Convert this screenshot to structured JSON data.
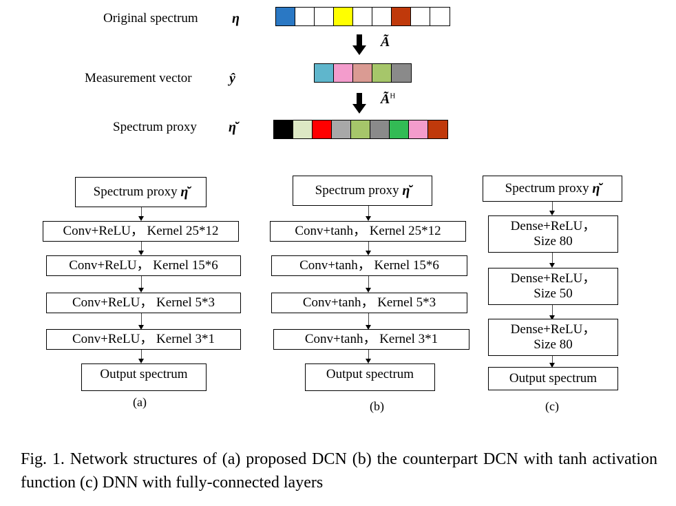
{
  "top": {
    "original_label": "Original spectrum",
    "original_symbol": "η",
    "original_colors": [
      "#2a78c4",
      "#ffffff",
      "#ffffff",
      "#ffff00",
      "#ffffff",
      "#ffffff",
      "#c0390b",
      "#ffffff",
      "#ffffff"
    ],
    "arrow1_label": "Ã",
    "measurement_label": "Measurement  vector",
    "measurement_symbol": "ŷ",
    "measurement_colors": [
      "#5fb6cc",
      "#f39ccc",
      "#da9b93",
      "#a6c66a",
      "#8a8a8a"
    ],
    "arrow2_label": "Ã",
    "arrow2_sup": "H",
    "proxy_label": "Spectrum  proxy",
    "proxy_symbol": "η̆",
    "proxy_colors": [
      "#000000",
      "#dde8c4",
      "#ff0000",
      "#a8a8a8",
      "#a6c66a",
      "#8a8a8a",
      "#33bb55",
      "#f39ccc",
      "#c0390b"
    ]
  },
  "networks": [
    {
      "id": "a",
      "input": "Spectrum proxy",
      "input_symbol": "η̆",
      "layers": [
        "Conv+ReLU， Kernel 25*12",
        "Conv+ReLU， Kernel 15*6",
        "Conv+ReLU， Kernel 5*3",
        "Conv+ReLU， Kernel 3*1"
      ],
      "output": "Output spectrum",
      "caption": "(a)"
    },
    {
      "id": "b",
      "input": "Spectrum proxy",
      "input_symbol": "η̆",
      "layers": [
        "Conv+tanh， Kernel 25*12",
        "Conv+tanh， Kernel 15*6",
        "Conv+tanh， Kernel 5*3",
        "Conv+tanh， Kernel 3*1"
      ],
      "output": "Output spectrum",
      "caption": "(b)"
    },
    {
      "id": "c",
      "input": "Spectrum proxy",
      "input_symbol": "η̆",
      "layers": [
        {
          "line1": "Dense+ReLU，",
          "line2": "Size  80"
        },
        {
          "line1": "Dense+ReLU，",
          "line2": "Size 50"
        },
        {
          "line1": "Dense+ReLU，",
          "line2": "Size  80"
        }
      ],
      "output": "Output spectrum",
      "caption": "(c)"
    }
  ],
  "figure_caption": "Fig. 1.  Network structures of (a) proposed DCN (b) the counterpart DCN with tanh activation function (c) DNN with fully-connected layers"
}
